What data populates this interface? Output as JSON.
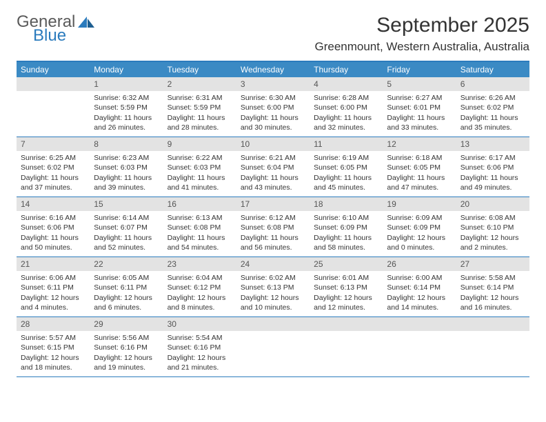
{
  "logo": {
    "word1": "General",
    "word2": "Blue",
    "color_general": "#5a5a5a",
    "color_blue": "#2b7bbd"
  },
  "title": "September 2025",
  "location": "Greenmount, Western Australia, Australia",
  "header_bg": "#3b8ac4",
  "header_text": "#ffffff",
  "daynum_bg": "#e3e3e3",
  "border_color": "#2b7bbd",
  "body_text": "#333333",
  "title_fontsize": 30,
  "location_fontsize": 17,
  "weekday_fontsize": 12,
  "cell_fontsize": 10.5,
  "weekdays": [
    "Sunday",
    "Monday",
    "Tuesday",
    "Wednesday",
    "Thursday",
    "Friday",
    "Saturday"
  ],
  "weeks": [
    [
      {
        "n": "",
        "sr": "",
        "ss": "",
        "dl": ""
      },
      {
        "n": "1",
        "sr": "Sunrise: 6:32 AM",
        "ss": "Sunset: 5:59 PM",
        "dl": "Daylight: 11 hours and 26 minutes."
      },
      {
        "n": "2",
        "sr": "Sunrise: 6:31 AM",
        "ss": "Sunset: 5:59 PM",
        "dl": "Daylight: 11 hours and 28 minutes."
      },
      {
        "n": "3",
        "sr": "Sunrise: 6:30 AM",
        "ss": "Sunset: 6:00 PM",
        "dl": "Daylight: 11 hours and 30 minutes."
      },
      {
        "n": "4",
        "sr": "Sunrise: 6:28 AM",
        "ss": "Sunset: 6:00 PM",
        "dl": "Daylight: 11 hours and 32 minutes."
      },
      {
        "n": "5",
        "sr": "Sunrise: 6:27 AM",
        "ss": "Sunset: 6:01 PM",
        "dl": "Daylight: 11 hours and 33 minutes."
      },
      {
        "n": "6",
        "sr": "Sunrise: 6:26 AM",
        "ss": "Sunset: 6:02 PM",
        "dl": "Daylight: 11 hours and 35 minutes."
      }
    ],
    [
      {
        "n": "7",
        "sr": "Sunrise: 6:25 AM",
        "ss": "Sunset: 6:02 PM",
        "dl": "Daylight: 11 hours and 37 minutes."
      },
      {
        "n": "8",
        "sr": "Sunrise: 6:23 AM",
        "ss": "Sunset: 6:03 PM",
        "dl": "Daylight: 11 hours and 39 minutes."
      },
      {
        "n": "9",
        "sr": "Sunrise: 6:22 AM",
        "ss": "Sunset: 6:03 PM",
        "dl": "Daylight: 11 hours and 41 minutes."
      },
      {
        "n": "10",
        "sr": "Sunrise: 6:21 AM",
        "ss": "Sunset: 6:04 PM",
        "dl": "Daylight: 11 hours and 43 minutes."
      },
      {
        "n": "11",
        "sr": "Sunrise: 6:19 AM",
        "ss": "Sunset: 6:05 PM",
        "dl": "Daylight: 11 hours and 45 minutes."
      },
      {
        "n": "12",
        "sr": "Sunrise: 6:18 AM",
        "ss": "Sunset: 6:05 PM",
        "dl": "Daylight: 11 hours and 47 minutes."
      },
      {
        "n": "13",
        "sr": "Sunrise: 6:17 AM",
        "ss": "Sunset: 6:06 PM",
        "dl": "Daylight: 11 hours and 49 minutes."
      }
    ],
    [
      {
        "n": "14",
        "sr": "Sunrise: 6:16 AM",
        "ss": "Sunset: 6:06 PM",
        "dl": "Daylight: 11 hours and 50 minutes."
      },
      {
        "n": "15",
        "sr": "Sunrise: 6:14 AM",
        "ss": "Sunset: 6:07 PM",
        "dl": "Daylight: 11 hours and 52 minutes."
      },
      {
        "n": "16",
        "sr": "Sunrise: 6:13 AM",
        "ss": "Sunset: 6:08 PM",
        "dl": "Daylight: 11 hours and 54 minutes."
      },
      {
        "n": "17",
        "sr": "Sunrise: 6:12 AM",
        "ss": "Sunset: 6:08 PM",
        "dl": "Daylight: 11 hours and 56 minutes."
      },
      {
        "n": "18",
        "sr": "Sunrise: 6:10 AM",
        "ss": "Sunset: 6:09 PM",
        "dl": "Daylight: 11 hours and 58 minutes."
      },
      {
        "n": "19",
        "sr": "Sunrise: 6:09 AM",
        "ss": "Sunset: 6:09 PM",
        "dl": "Daylight: 12 hours and 0 minutes."
      },
      {
        "n": "20",
        "sr": "Sunrise: 6:08 AM",
        "ss": "Sunset: 6:10 PM",
        "dl": "Daylight: 12 hours and 2 minutes."
      }
    ],
    [
      {
        "n": "21",
        "sr": "Sunrise: 6:06 AM",
        "ss": "Sunset: 6:11 PM",
        "dl": "Daylight: 12 hours and 4 minutes."
      },
      {
        "n": "22",
        "sr": "Sunrise: 6:05 AM",
        "ss": "Sunset: 6:11 PM",
        "dl": "Daylight: 12 hours and 6 minutes."
      },
      {
        "n": "23",
        "sr": "Sunrise: 6:04 AM",
        "ss": "Sunset: 6:12 PM",
        "dl": "Daylight: 12 hours and 8 minutes."
      },
      {
        "n": "24",
        "sr": "Sunrise: 6:02 AM",
        "ss": "Sunset: 6:13 PM",
        "dl": "Daylight: 12 hours and 10 minutes."
      },
      {
        "n": "25",
        "sr": "Sunrise: 6:01 AM",
        "ss": "Sunset: 6:13 PM",
        "dl": "Daylight: 12 hours and 12 minutes."
      },
      {
        "n": "26",
        "sr": "Sunrise: 6:00 AM",
        "ss": "Sunset: 6:14 PM",
        "dl": "Daylight: 12 hours and 14 minutes."
      },
      {
        "n": "27",
        "sr": "Sunrise: 5:58 AM",
        "ss": "Sunset: 6:14 PM",
        "dl": "Daylight: 12 hours and 16 minutes."
      }
    ],
    [
      {
        "n": "28",
        "sr": "Sunrise: 5:57 AM",
        "ss": "Sunset: 6:15 PM",
        "dl": "Daylight: 12 hours and 18 minutes."
      },
      {
        "n": "29",
        "sr": "Sunrise: 5:56 AM",
        "ss": "Sunset: 6:16 PM",
        "dl": "Daylight: 12 hours and 19 minutes."
      },
      {
        "n": "30",
        "sr": "Sunrise: 5:54 AM",
        "ss": "Sunset: 6:16 PM",
        "dl": "Daylight: 12 hours and 21 minutes."
      },
      {
        "n": "",
        "sr": "",
        "ss": "",
        "dl": ""
      },
      {
        "n": "",
        "sr": "",
        "ss": "",
        "dl": ""
      },
      {
        "n": "",
        "sr": "",
        "ss": "",
        "dl": ""
      },
      {
        "n": "",
        "sr": "",
        "ss": "",
        "dl": ""
      }
    ]
  ]
}
